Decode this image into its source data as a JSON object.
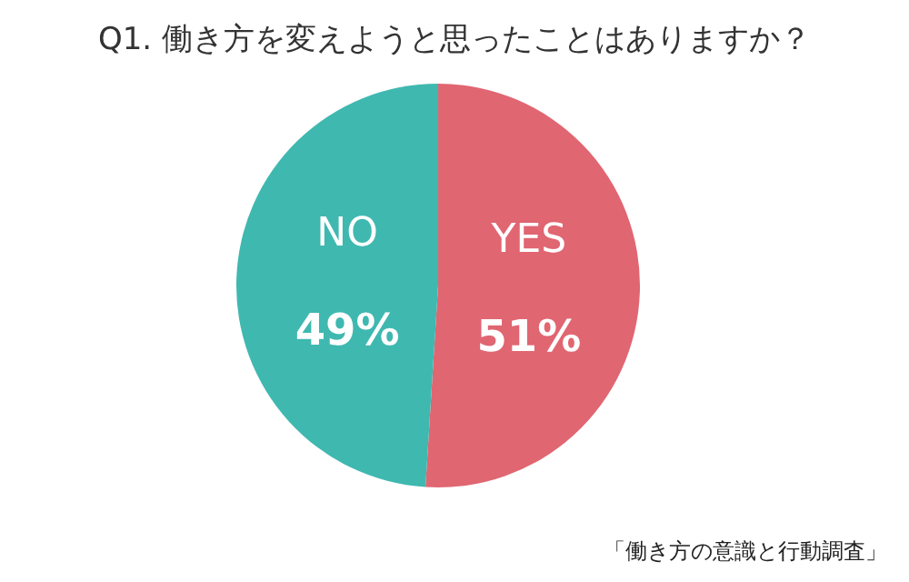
{
  "chart_data": {
    "type": "pie",
    "title": "Q1.  働き方を変えようと思ったことはありますか？",
    "categories": [
      "YES",
      "NO"
    ],
    "values": [
      51,
      49
    ],
    "colors": [
      "#e06672",
      "#3fb8b0"
    ],
    "value_labels": [
      "51%",
      "49%"
    ],
    "legend": false,
    "annotations": [
      "「働き方の意識と行動調査」"
    ]
  }
}
